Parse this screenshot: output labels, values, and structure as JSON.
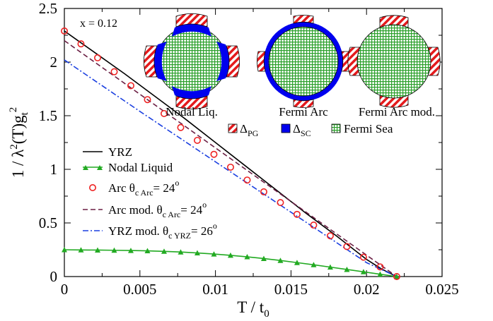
{
  "chart_data": {
    "type": "line",
    "annotation": "x = 0.12",
    "xlabel": "T / t",
    "xlabel_sub": "0",
    "ylabel_parts": {
      "a": "1 / λ",
      "b": "2",
      "c": "(T)g",
      "d": "t",
      "e": "2"
    },
    "xlim": [
      0,
      0.025
    ],
    "ylim": [
      0,
      2.5
    ],
    "xticks": [
      0,
      0.005,
      0.01,
      0.015,
      0.02,
      0.025
    ],
    "xtick_labels": [
      "0",
      "0.005",
      "0.01",
      "0.015",
      "0.02",
      "0.025"
    ],
    "yticks": [
      0,
      0.5,
      1,
      1.5,
      2,
      2.5
    ],
    "ytick_labels": [
      "0",
      "0.5",
      "1",
      "1.5",
      "2",
      "2.5"
    ],
    "grid": false,
    "legend_position": "lower-left",
    "series": [
      {
        "key": "yrz",
        "color": "#000000",
        "style": "solid",
        "marker": "none",
        "legend": {
          "main": "YRZ"
        },
        "x": [
          0,
          0.002,
          0.004,
          0.006,
          0.008,
          0.01,
          0.012,
          0.014,
          0.016,
          0.018,
          0.02,
          0.021,
          0.022
        ],
        "y": [
          2.29,
          2.09,
          1.89,
          1.68,
          1.47,
          1.25,
          1.03,
          0.81,
          0.59,
          0.38,
          0.16,
          0.07,
          0.0
        ]
      },
      {
        "key": "nodal",
        "color": "#22aa22",
        "style": "solid",
        "marker": "triangle",
        "legend": {
          "main": "Nodal Liquid"
        },
        "x": [
          0,
          0.0011,
          0.0022,
          0.0033,
          0.0044,
          0.0055,
          0.0066,
          0.0077,
          0.0088,
          0.0099,
          0.011,
          0.0121,
          0.0132,
          0.0143,
          0.0154,
          0.0165,
          0.0176,
          0.0187,
          0.0198,
          0.0209,
          0.022
        ],
        "y": [
          0.25,
          0.248,
          0.247,
          0.245,
          0.243,
          0.24,
          0.235,
          0.229,
          0.22,
          0.21,
          0.198,
          0.184,
          0.168,
          0.15,
          0.13,
          0.11,
          0.088,
          0.066,
          0.044,
          0.022,
          0.0
        ]
      },
      {
        "key": "arc",
        "color": "#ee2222",
        "style": "none",
        "marker": "circle",
        "legend": {
          "main": "Arc  θ",
          "sub": "c Arc",
          "rest": "= 24",
          "sup": "o"
        },
        "x": [
          0,
          0.0011,
          0.0022,
          0.0033,
          0.0044,
          0.0055,
          0.0066,
          0.0077,
          0.0088,
          0.0099,
          0.011,
          0.0121,
          0.0132,
          0.0143,
          0.0154,
          0.0165,
          0.0176,
          0.0187,
          0.0198,
          0.0209,
          0.022
        ],
        "y": [
          2.29,
          2.17,
          2.04,
          1.91,
          1.78,
          1.65,
          1.52,
          1.39,
          1.27,
          1.14,
          1.02,
          0.9,
          0.79,
          0.69,
          0.58,
          0.48,
          0.38,
          0.28,
          0.18,
          0.09,
          0.0
        ]
      },
      {
        "key": "arcmod",
        "color": "#6b1f44",
        "style": "dashed",
        "marker": "none",
        "legend": {
          "main": "Arc mod.  θ",
          "sub": "c Arc",
          "rest": "= 24",
          "sup": "o"
        },
        "x": [
          0,
          0.005,
          0.01,
          0.015,
          0.02,
          0.022
        ],
        "y": [
          2.2,
          1.7,
          1.2,
          0.7,
          0.2,
          0.0
        ]
      },
      {
        "key": "yrzmod",
        "color": "#1a3fe0",
        "style": "dashdot",
        "marker": "none",
        "legend": {
          "main": "YRZ mod.  θ",
          "sub": "c YRZ",
          "rest": "= 26",
          "sup": "o"
        },
        "x": [
          0,
          0.005,
          0.01,
          0.015,
          0.02,
          0.022
        ],
        "y": [
          2.02,
          1.54,
          1.07,
          0.6,
          0.13,
          0.0
        ]
      }
    ],
    "inset": {
      "labels": [
        "Nodal Liq.",
        "Fermi Arc",
        "Fermi Arc mod."
      ],
      "legend": [
        {
          "key": "pg",
          "text": "Δ",
          "sub": "PG"
        },
        {
          "key": "sc",
          "text": "Δ",
          "sub": "SC"
        },
        {
          "key": "fs",
          "text": "Fermi Sea"
        }
      ],
      "colors": {
        "pg": "#e41a1c",
        "sc": "#0000ee",
        "fs": "#2ca02c"
      }
    }
  }
}
